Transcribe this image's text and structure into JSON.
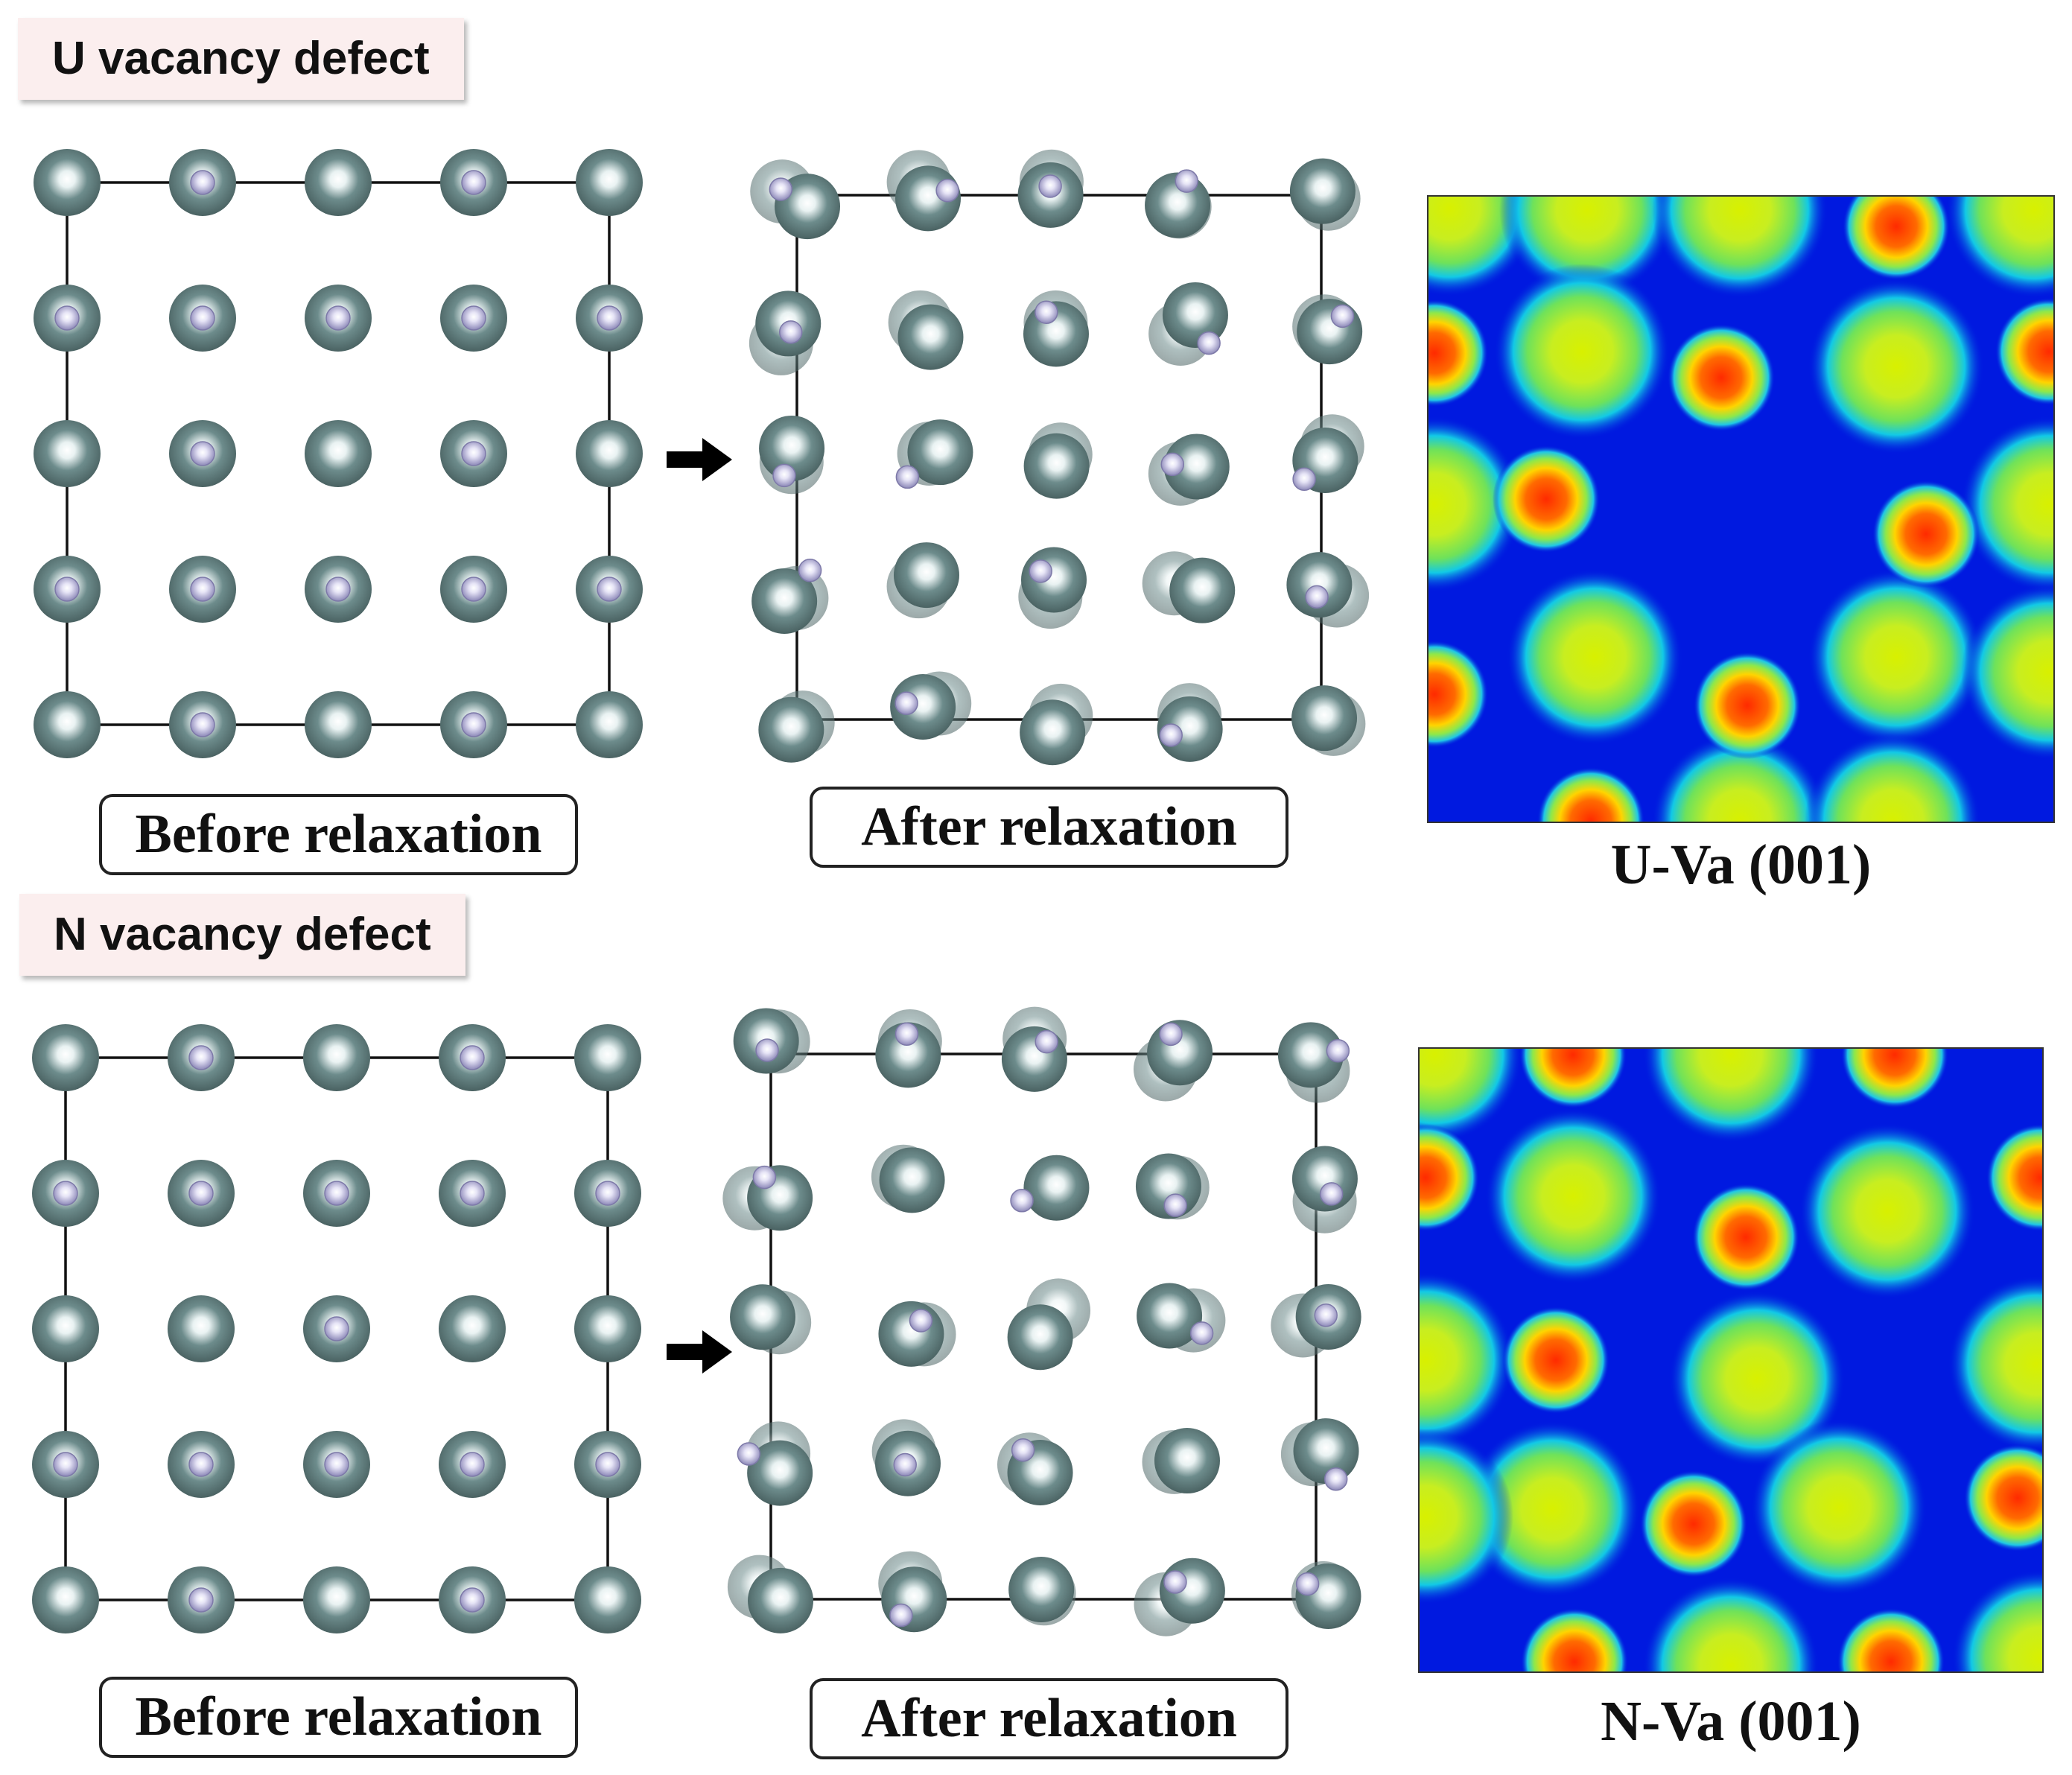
{
  "colors": {
    "u_atom": "#6d8c8c",
    "n_atom": "#b6b3d8",
    "cell_line": "#111111",
    "map_low": "#0019e0",
    "map_mid": "#c8f21e",
    "map_high": "#ff2200",
    "label_bg": "#fbeeee"
  },
  "panels": [
    {
      "section_label": "U vacancy defect",
      "before_caption": "Before relaxation",
      "after_caption": "After relaxation",
      "map_caption": "U-Va (001)"
    },
    {
      "section_label": "N vacancy defect",
      "before_caption": "Before relaxation",
      "after_caption": "After relaxation",
      "map_caption": "N-Va (001)"
    }
  ],
  "icons": {
    "arrow": "right-arrow-icon"
  }
}
